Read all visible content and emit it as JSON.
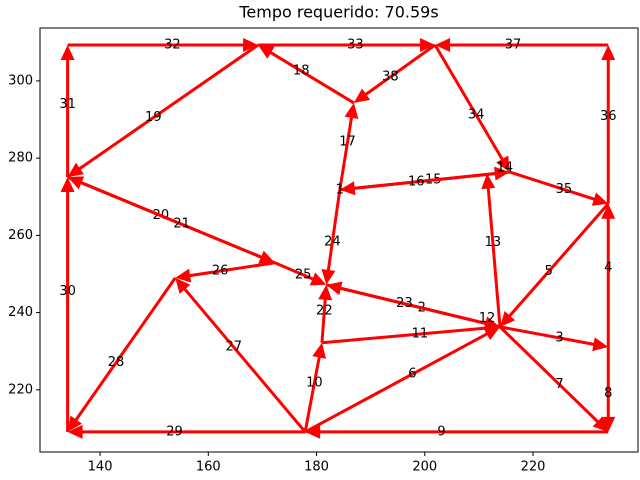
{
  "chart_data": {
    "type": "network",
    "title": "Tempo requerido: 70.59s",
    "color": "#ff0000",
    "xlim": [
      128.9,
      239.4
    ],
    "ylim": [
      203.9,
      313.7
    ],
    "xticks": [
      140,
      160,
      180,
      200,
      220
    ],
    "yticks": [
      220,
      240,
      260,
      280,
      300
    ],
    "edges": [
      {
        "label": "2",
        "x": [
          181.8,
          213.9
        ],
        "y": [
          247.2,
          236.3
        ]
      },
      {
        "label": "3",
        "x": [
          213.9,
          233.9
        ],
        "y": [
          236.3,
          231.1
        ]
      },
      {
        "label": "4",
        "x": [
          233.9,
          233.9
        ],
        "y": [
          231.1,
          268.2
        ]
      },
      {
        "label": "5",
        "x": [
          233.9,
          213.9
        ],
        "y": [
          268.2,
          236.3
        ]
      },
      {
        "label": "6",
        "x": [
          177.9,
          213.9
        ],
        "y": [
          209.1,
          236.3
        ]
      },
      {
        "label": "7",
        "x": [
          213.9,
          233.9
        ],
        "y": [
          236.3,
          209.1
        ]
      },
      {
        "label": "8",
        "x": [
          233.9,
          233.9
        ],
        "y": [
          231.1,
          209.1
        ]
      },
      {
        "label": "9",
        "x": [
          233.9,
          177.9
        ],
        "y": [
          209.1,
          209.1
        ]
      },
      {
        "label": "10",
        "x": [
          177.9,
          181.0
        ],
        "y": [
          209.1,
          232.2
        ]
      },
      {
        "label": "11",
        "x": [
          181.0,
          213.9
        ],
        "y": [
          232.2,
          236.3
        ]
      },
      {
        "label": "13",
        "x": [
          213.9,
          211.5
        ],
        "y": [
          236.3,
          276.0
        ]
      },
      {
        "label": "15",
        "x": [
          184.3,
          215.7
        ],
        "y": [
          271.8,
          276.4
        ]
      },
      {
        "label": "16",
        "x": [
          215.7,
          184.3
        ],
        "y": [
          276.4,
          271.8
        ]
      },
      {
        "label": "17",
        "x": [
          184.3,
          186.9
        ],
        "y": [
          271.8,
          294.3
        ]
      },
      {
        "label": "18",
        "x": [
          186.9,
          169.2
        ],
        "y": [
          294.3,
          309.3
        ]
      },
      {
        "label": "19",
        "x": [
          169.2,
          134.0
        ],
        "y": [
          309.3,
          275.1
        ]
      },
      {
        "label": "20",
        "x": [
          172.3,
          134.0
        ],
        "y": [
          252.9,
          275.1
        ]
      },
      {
        "label": "21",
        "x": [
          134.0,
          172.3
        ],
        "y": [
          275.1,
          252.9
        ]
      },
      {
        "label": "22",
        "x": [
          181.0,
          181.8
        ],
        "y": [
          232.2,
          247.2
        ]
      },
      {
        "label": "23",
        "x": [
          213.9,
          181.8
        ],
        "y": [
          236.3,
          247.2
        ]
      },
      {
        "label": "24",
        "x": [
          184.3,
          181.8
        ],
        "y": [
          271.8,
          247.2
        ]
      },
      {
        "label": "25",
        "x": [
          172.3,
          181.8
        ],
        "y": [
          252.9,
          247.2
        ]
      },
      {
        "label": "26",
        "x": [
          172.3,
          153.9
        ],
        "y": [
          252.9,
          249.0
        ]
      },
      {
        "label": "27",
        "x": [
          177.9,
          153.9
        ],
        "y": [
          209.1,
          249.0
        ]
      },
      {
        "label": "28",
        "x": [
          153.9,
          134.0
        ],
        "y": [
          249.0,
          209.1
        ]
      },
      {
        "label": "29",
        "x": [
          177.9,
          134.0
        ],
        "y": [
          209.1,
          209.1
        ]
      },
      {
        "label": "30",
        "x": [
          134.0,
          134.0
        ],
        "y": [
          209.1,
          275.1
        ]
      },
      {
        "label": "31",
        "x": [
          134.0,
          134.0
        ],
        "y": [
          275.1,
          309.3
        ]
      },
      {
        "label": "32",
        "x": [
          134.0,
          169.2
        ],
        "y": [
          309.3,
          309.3
        ]
      },
      {
        "label": "33",
        "x": [
          169.2,
          201.9
        ],
        "y": [
          309.3,
          309.3
        ]
      },
      {
        "label": "34",
        "x": [
          201.9,
          215.7
        ],
        "y": [
          309.3,
          276.4
        ]
      },
      {
        "label": "35",
        "x": [
          215.7,
          233.9
        ],
        "y": [
          276.4,
          268.2
        ]
      },
      {
        "label": "36",
        "x": [
          233.9,
          233.9
        ],
        "y": [
          268.2,
          309.3
        ]
      },
      {
        "label": "37",
        "x": [
          233.9,
          201.9
        ],
        "y": [
          309.3,
          309.3
        ]
      },
      {
        "label": "38",
        "x": [
          201.9,
          186.9
        ],
        "y": [
          309.3,
          294.3
        ]
      }
    ],
    "annotations": [
      {
        "text": "1",
        "x": 184.3,
        "y": 271.8
      },
      {
        "text": "12",
        "x": 211.5,
        "y": 238.5
      },
      {
        "text": "14",
        "x": 214.8,
        "y": 277.5
      }
    ]
  }
}
